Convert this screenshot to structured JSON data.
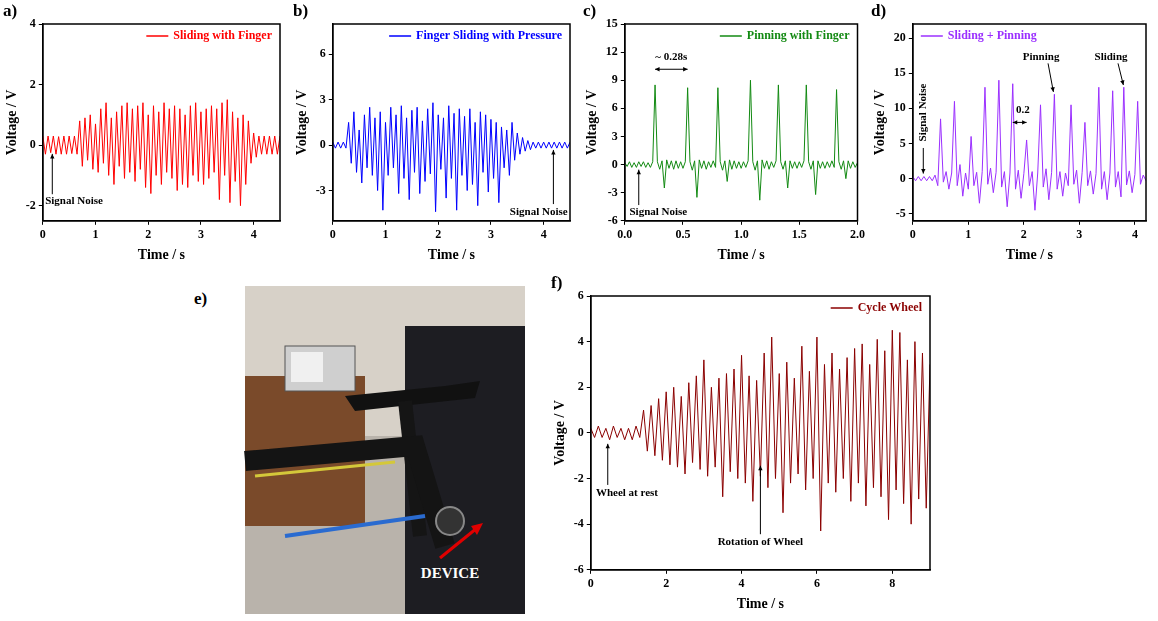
{
  "chart_data": [
    {
      "panel": "a)",
      "type": "line",
      "x_label": "Time / s",
      "y_label": "Voltage / V",
      "grid": false,
      "legend": "upper right",
      "xlim": [
        0,
        4.5
      ],
      "xticks": [
        0,
        1,
        2,
        3,
        4
      ],
      "ylim": [
        -2.5,
        4
      ],
      "yticks": [
        -2,
        0,
        2,
        4
      ],
      "annotations": [
        "Signal Noise"
      ],
      "x": [
        0,
        0.05,
        0.1,
        0.15,
        0.2,
        0.25,
        0.3,
        0.35,
        0.4,
        0.45,
        0.5,
        0.55,
        0.6,
        0.65,
        0.7,
        0.75,
        0.8,
        0.85,
        0.9,
        0.95,
        1,
        1.05,
        1.1,
        1.15,
        1.2,
        1.25,
        1.3,
        1.35,
        1.4,
        1.45,
        1.5,
        1.55,
        1.6,
        1.65,
        1.7,
        1.75,
        1.8,
        1.85,
        1.9,
        1.95,
        2,
        2.05,
        2.1,
        2.15,
        2.2,
        2.25,
        2.3,
        2.35,
        2.4,
        2.45,
        2.5,
        2.55,
        2.6,
        2.65,
        2.7,
        2.75,
        2.8,
        2.85,
        2.9,
        2.95,
        3,
        3.05,
        3.1,
        3.15,
        3.2,
        3.25,
        3.3,
        3.35,
        3.4,
        3.45,
        3.5,
        3.55,
        3.6,
        3.65,
        3.7,
        3.75,
        3.8,
        3.85,
        3.9,
        3.95,
        4,
        4.05,
        4.1,
        4.15,
        4.2,
        4.25,
        4.3,
        4.35,
        4.4,
        4.45,
        4.5
      ],
      "series": [
        {
          "name": "Sliding with Finger",
          "color": "#ff0000",
          "values": [
            0.3,
            -0.3,
            0.3,
            -0.25,
            0.3,
            -0.3,
            0.28,
            -0.3,
            0.3,
            -0.3,
            0.3,
            -0.28,
            0.3,
            -0.3,
            0.8,
            -0.7,
            0.9,
            -0.5,
            1.0,
            -0.8,
            0.7,
            -0.9,
            1.2,
            -0.6,
            1.4,
            -1.0,
            0.9,
            -1.3,
            1.1,
            -0.7,
            1.3,
            -1.1,
            1.4,
            -0.9,
            1.2,
            -1.2,
            1.3,
            -0.8,
            1.4,
            -1.4,
            1.0,
            -1.6,
            1.3,
            -1.0,
            1.1,
            -1.3,
            1.4,
            -0.9,
            1.2,
            -1.1,
            1.3,
            -1.5,
            1.2,
            -1.3,
            1.0,
            -1.4,
            1.3,
            -1.0,
            1.4,
            -1.2,
            1.1,
            -1.3,
            1.2,
            -1.1,
            1.3,
            -0.9,
            1.2,
            -1.8,
            1.4,
            -1.0,
            1.5,
            -1.9,
            1.1,
            -1.2,
            0.9,
            -2.0,
            1.0,
            -1.3,
            0.8,
            -0.6,
            0.4,
            -0.4,
            0.3,
            -0.3,
            0.3,
            -0.3,
            0.3,
            -0.3,
            0.3,
            -0.3,
            0.3
          ]
        }
      ]
    },
    {
      "panel": "b)",
      "type": "line",
      "x_label": "Time / s",
      "y_label": "Voltage / V",
      "grid": false,
      "legend": "upper right",
      "xlim": [
        0,
        4.5
      ],
      "xticks": [
        0,
        1,
        2,
        3,
        4
      ],
      "ylim": [
        -5,
        8
      ],
      "yticks": [
        -3,
        0,
        3,
        6
      ],
      "annotations": [
        "Signal Noise"
      ],
      "x": [
        0,
        0.05,
        0.1,
        0.15,
        0.2,
        0.25,
        0.3,
        0.35,
        0.4,
        0.45,
        0.5,
        0.55,
        0.6,
        0.65,
        0.7,
        0.75,
        0.8,
        0.85,
        0.9,
        0.95,
        1,
        1.05,
        1.1,
        1.15,
        1.2,
        1.25,
        1.3,
        1.35,
        1.4,
        1.45,
        1.5,
        1.55,
        1.6,
        1.65,
        1.7,
        1.75,
        1.8,
        1.85,
        1.9,
        1.95,
        2,
        2.05,
        2.1,
        2.15,
        2.2,
        2.25,
        2.3,
        2.35,
        2.4,
        2.45,
        2.5,
        2.55,
        2.6,
        2.65,
        2.7,
        2.75,
        2.8,
        2.85,
        2.9,
        2.95,
        3,
        3.05,
        3.1,
        3.15,
        3.2,
        3.25,
        3.3,
        3.35,
        3.4,
        3.45,
        3.5,
        3.55,
        3.6,
        3.65,
        3.7,
        3.75,
        3.8,
        3.85,
        3.9,
        3.95,
        4,
        4.05,
        4.1,
        4.15,
        4.2,
        4.25,
        4.3,
        4.35,
        4.4,
        4.45,
        4.5
      ],
      "series": [
        {
          "name": "Finger Sliding with Pressure",
          "color": "#0000ff",
          "values": [
            0.2,
            -0.2,
            0.2,
            -0.2,
            0.2,
            -0.2,
            1.5,
            -1.2,
            2.2,
            -1.8,
            1.0,
            -2.5,
            2.0,
            -1.5,
            2.5,
            -2.0,
            1.8,
            -3.0,
            2.2,
            -4.3,
            1.5,
            -2.0,
            2.5,
            -1.5,
            2.0,
            -3.2,
            2.6,
            -2.2,
            1.8,
            -3.6,
            2.3,
            -1.8,
            2.5,
            -3.2,
            1.6,
            -2.4,
            2.4,
            -1.9,
            2.8,
            -4.4,
            2.0,
            -1.6,
            1.8,
            -3.5,
            2.6,
            -2.2,
            2.1,
            -4.3,
            2.4,
            -2.0,
            1.9,
            -3.0,
            2.4,
            -2.6,
            1.5,
            -4.0,
            2.2,
            -1.8,
            2.0,
            -3.1,
            1.7,
            -2.2,
            1.5,
            -3.8,
            1.2,
            -1.5,
            1.0,
            -2.0,
            1.5,
            -1.0,
            0.8,
            -0.6,
            0.5,
            -0.4,
            0.3,
            -0.3,
            0.2,
            -0.2,
            0.2,
            -0.2,
            0.2,
            -0.2,
            0.2,
            -0.2,
            0.2,
            -0.2,
            0.2,
            -0.2,
            0.2,
            -0.2,
            0.2
          ]
        }
      ]
    },
    {
      "panel": "c)",
      "type": "line",
      "x_label": "Time / s",
      "y_label": "Voltage / V",
      "grid": false,
      "legend": "upper right",
      "xlim": [
        0,
        2
      ],
      "xticks": [
        {
          "value": 0,
          "label": "0.0"
        },
        0.5,
        {
          "value": 1,
          "label": "1.0"
        },
        1.5,
        {
          "value": 2,
          "label": "2.0"
        }
      ],
      "ylim": [
        -6,
        15
      ],
      "yticks": [
        -6,
        -3,
        0,
        3,
        6,
        9,
        12,
        15
      ],
      "annotations": [
        "Signal Noise",
        "~ 0.28s"
      ],
      "x": [
        0,
        0.02,
        0.04,
        0.06,
        0.08,
        0.1,
        0.12,
        0.14,
        0.16,
        0.18,
        0.2,
        0.22,
        0.24,
        0.26,
        0.28,
        0.3,
        0.32,
        0.34,
        0.36,
        0.38,
        0.4,
        0.42,
        0.44,
        0.46,
        0.48,
        0.5,
        0.52,
        0.54,
        0.56,
        0.58,
        0.6,
        0.62,
        0.64,
        0.66,
        0.68,
        0.7,
        0.72,
        0.74,
        0.76,
        0.78,
        0.8,
        0.82,
        0.84,
        0.86,
        0.88,
        0.9,
        0.92,
        0.94,
        0.96,
        0.98,
        1,
        1.02,
        1.04,
        1.06,
        1.08,
        1.1,
        1.12,
        1.14,
        1.16,
        1.18,
        1.2,
        1.22,
        1.24,
        1.26,
        1.28,
        1.3,
        1.32,
        1.34,
        1.36,
        1.38,
        1.4,
        1.42,
        1.44,
        1.46,
        1.48,
        1.5,
        1.52,
        1.54,
        1.56,
        1.58,
        1.6,
        1.62,
        1.64,
        1.66,
        1.68,
        1.7,
        1.72,
        1.74,
        1.76,
        1.78,
        1.8,
        1.82,
        1.84,
        1.86,
        1.88,
        1.9,
        1.92,
        1.94,
        1.96,
        1.98,
        2
      ],
      "series": [
        {
          "name": "Pinning with Finger",
          "color": "#138a13",
          "values": [
            0.2,
            -0.2,
            0.3,
            -0.3,
            0.2,
            -0.3,
            0.3,
            -0.2,
            0.3,
            -0.3,
            0.2,
            -0.3,
            0.3,
            8.5,
            0.3,
            -0.5,
            0.4,
            -2.5,
            0.5,
            -0.4,
            0.4,
            -0.5,
            0.4,
            -0.4,
            0.3,
            -0.4,
            0.3,
            8.2,
            0.3,
            -0.6,
            0.4,
            -3.5,
            0.5,
            -0.4,
            0.4,
            -0.5,
            0.3,
            -0.3,
            0.4,
            -0.3,
            8.2,
            0.3,
            -0.6,
            0.4,
            -1.8,
            0.5,
            -0.5,
            0.4,
            -0.4,
            0.3,
            -0.4,
            0.3,
            -0.3,
            0.4,
            9.0,
            0.3,
            -0.6,
            0.4,
            -3.8,
            0.5,
            -0.4,
            0.4,
            -0.5,
            0.3,
            -0.3,
            0.4,
            8.5,
            0.3,
            -0.5,
            0.4,
            -2.5,
            0.4,
            -0.4,
            0.3,
            -0.4,
            0.3,
            -0.3,
            0.4,
            8.5,
            0.3,
            -0.5,
            0.4,
            -3.2,
            0.4,
            -0.4,
            0.3,
            -0.4,
            0.3,
            -0.3,
            0.4,
            -0.3,
            8.0,
            0.3,
            -0.5,
            0.4,
            -1.5,
            0.4,
            -0.4,
            0.3,
            -0.3,
            0.2
          ]
        }
      ]
    },
    {
      "panel": "d)",
      "type": "line",
      "x_label": "Time / s",
      "y_label": "Voltage / V",
      "grid": false,
      "legend": "upper left",
      "xlim": [
        0,
        4.2
      ],
      "xticks": [
        0,
        1,
        2,
        3,
        4
      ],
      "ylim": [
        -6,
        22
      ],
      "yticks": [
        -5,
        0,
        5,
        10,
        15,
        20
      ],
      "annotations": [
        "Signal Noise",
        "0.2",
        "Pinning",
        "Sliding"
      ],
      "x": [
        0,
        0.05,
        0.1,
        0.15,
        0.2,
        0.25,
        0.3,
        0.35,
        0.4,
        0.45,
        0.5,
        0.55,
        0.6,
        0.65,
        0.7,
        0.75,
        0.8,
        0.85,
        0.9,
        0.95,
        1,
        1.05,
        1.1,
        1.15,
        1.2,
        1.25,
        1.3,
        1.35,
        1.4,
        1.45,
        1.5,
        1.55,
        1.6,
        1.65,
        1.7,
        1.75,
        1.8,
        1.85,
        1.9,
        1.95,
        2,
        2.05,
        2.1,
        2.15,
        2.2,
        2.25,
        2.3,
        2.35,
        2.4,
        2.45,
        2.5,
        2.55,
        2.6,
        2.65,
        2.7,
        2.75,
        2.8,
        2.85,
        2.9,
        2.95,
        3,
        3.05,
        3.1,
        3.15,
        3.2,
        3.25,
        3.3,
        3.35,
        3.4,
        3.45,
        3.5,
        3.55,
        3.6,
        3.65,
        3.7,
        3.75,
        3.8,
        3.85,
        3.9,
        3.95,
        4,
        4.05,
        4.1,
        4.15,
        4.2
      ],
      "series": [
        {
          "name": "Sliding + Pinning",
          "color": "#9b30ff",
          "values": [
            0.3,
            -0.3,
            0.3,
            -0.3,
            0.3,
            -0.3,
            0.3,
            -0.3,
            0.5,
            -1.0,
            8.5,
            -0.5,
            1.0,
            -1.5,
            0.8,
            11.0,
            -1.0,
            2.0,
            -2.5,
            0.8,
            -1.5,
            6.0,
            -1.0,
            0.9,
            -3.5,
            1.0,
            13.0,
            -0.8,
            1.5,
            -2.0,
            0.9,
            14.0,
            -1.2,
            1.0,
            -4.0,
            0.8,
            13.5,
            -1.5,
            1.2,
            -2.8,
            0.7,
            5.5,
            -1.0,
            1.0,
            -4.5,
            0.8,
            10.5,
            -1.2,
            1.4,
            -3.0,
            0.9,
            12.0,
            -1.5,
            1.0,
            -2.5,
            0.8,
            -1.0,
            10.5,
            -0.8,
            1.2,
            -3.5,
            0.9,
            8.0,
            -1.0,
            1.1,
            -2.2,
            0.7,
            13.0,
            -1.5,
            1.0,
            -3.0,
            0.8,
            12.5,
            -1.2,
            1.0,
            -2.6,
            13.0,
            -0.9,
            1.1,
            -2.0,
            0.6,
            11.0,
            -0.8,
            0.5,
            -0.3
          ]
        }
      ]
    },
    {
      "panel": "e)",
      "type": "photo",
      "annotations": [
        "DEVICE"
      ]
    },
    {
      "panel": "f)",
      "type": "line",
      "x_label": "Time / s",
      "y_label": "Voltage / V",
      "grid": false,
      "legend": "upper right",
      "xlim": [
        0,
        9
      ],
      "xticks": [
        0,
        2,
        4,
        6,
        8
      ],
      "ylim": [
        -6,
        6
      ],
      "yticks": [
        -6,
        -4,
        -2,
        0,
        2,
        4,
        6
      ],
      "annotations": [
        "Wheel at rest",
        "Rotation of Wheel"
      ],
      "x": [
        0,
        0.1,
        0.2,
        0.3,
        0.4,
        0.5,
        0.6,
        0.7,
        0.8,
        0.9,
        1,
        1.1,
        1.2,
        1.3,
        1.4,
        1.5,
        1.6,
        1.7,
        1.8,
        1.9,
        2,
        2.1,
        2.2,
        2.3,
        2.4,
        2.5,
        2.6,
        2.7,
        2.8,
        2.9,
        3,
        3.1,
        3.2,
        3.3,
        3.4,
        3.5,
        3.6,
        3.7,
        3.8,
        3.9,
        4,
        4.1,
        4.2,
        4.3,
        4.4,
        4.5,
        4.6,
        4.7,
        4.8,
        4.9,
        5,
        5.1,
        5.2,
        5.3,
        5.4,
        5.5,
        5.6,
        5.7,
        5.8,
        5.9,
        6,
        6.1,
        6.2,
        6.3,
        6.4,
        6.5,
        6.6,
        6.7,
        6.8,
        6.9,
        7,
        7.1,
        7.2,
        7.3,
        7.4,
        7.5,
        7.6,
        7.7,
        7.8,
        7.9,
        8,
        8.1,
        8.2,
        8.3,
        8.4,
        8.5,
        8.6,
        8.7,
        8.8,
        8.9,
        9
      ],
      "series": [
        {
          "name": "Cycle Wheel",
          "color": "#8b0000",
          "values": [
            0.2,
            -0.2,
            0.3,
            -0.2,
            0.2,
            -0.3,
            0.3,
            -0.2,
            0.2,
            -0.3,
            0.2,
            -0.3,
            0.3,
            -0.2,
            1.0,
            -0.8,
            1.2,
            -1.0,
            1.5,
            -1.2,
            1.8,
            -1.4,
            2.0,
            -1.5,
            1.6,
            -1.8,
            2.2,
            -1.3,
            2.5,
            -1.6,
            3.2,
            -1.9,
            2.0,
            -1.5,
            2.4,
            -2.8,
            2.6,
            -1.7,
            2.8,
            -2.0,
            3.4,
            -2.2,
            2.5,
            -3.0,
            2.3,
            -1.9,
            3.5,
            -2.4,
            4.2,
            -2.0,
            2.6,
            -3.5,
            3.1,
            -2.2,
            2.4,
            -1.8,
            3.8,
            -2.5,
            2.7,
            -2.0,
            4.2,
            -4.3,
            3.0,
            -2.2,
            3.5,
            -2.6,
            2.8,
            -2.0,
            3.3,
            -3.0,
            3.7,
            -2.2,
            3.9,
            -3.2,
            3.0,
            -2.4,
            4.1,
            -2.8,
            3.6,
            -3.8,
            4.5,
            -2.5,
            4.4,
            -3.1,
            3.2,
            -4.0,
            4.0,
            -2.9,
            3.5,
            -3.3,
            3.0
          ]
        }
      ]
    }
  ]
}
